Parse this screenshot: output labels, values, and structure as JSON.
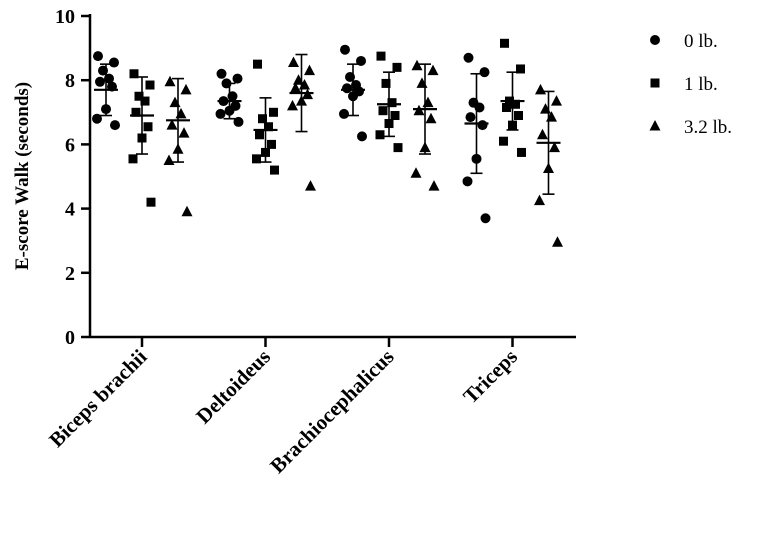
{
  "chart_data": {
    "type": "scatter",
    "title": "",
    "xlabel": "",
    "ylabel": "E-score Walk (seconds)",
    "ylim": [
      0,
      10
    ],
    "yticks": [
      0,
      2,
      4,
      6,
      8,
      10
    ],
    "categories": [
      "Biceps brachii",
      "Deltoideus",
      "Brachiocephalicus",
      "Triceps"
    ],
    "legend_position": "top-right",
    "grid": false,
    "series": [
      {
        "name": "0 lb.",
        "marker": "circle",
        "points": [
          [
            8.75,
            8.55,
            8.3,
            8.05,
            7.95,
            7.8,
            7.1,
            6.8,
            6.6
          ],
          [
            8.2,
            8.05,
            7.9,
            7.5,
            7.35,
            7.2,
            7.05,
            6.95,
            6.7
          ],
          [
            8.95,
            8.6,
            8.1,
            7.85,
            7.75,
            7.65,
            7.5,
            6.95,
            6.25
          ],
          [
            8.7,
            8.25,
            7.3,
            7.15,
            6.85,
            6.6,
            5.55,
            4.85,
            3.7
          ]
        ],
        "mean": [
          7.7,
          7.35,
          7.7,
          6.65
        ],
        "sd": [
          0.8,
          0.55,
          0.8,
          1.55
        ]
      },
      {
        "name": "1 lb.",
        "marker": "square",
        "points": [
          [
            8.2,
            7.85,
            7.5,
            7.35,
            7.0,
            6.55,
            6.2,
            5.55,
            4.2
          ],
          [
            8.5,
            7.0,
            6.8,
            6.55,
            6.3,
            6.0,
            5.75,
            5.55,
            5.2
          ],
          [
            8.75,
            8.4,
            7.9,
            7.3,
            7.05,
            6.9,
            6.65,
            6.3,
            5.9
          ],
          [
            9.15,
            8.35,
            7.35,
            7.25,
            7.15,
            6.9,
            6.6,
            6.1,
            5.75
          ]
        ],
        "mean": [
          6.9,
          6.45,
          7.25,
          7.35
        ],
        "sd": [
          1.2,
          1.0,
          1.0,
          0.9
        ]
      },
      {
        "name": "3.2 lb.",
        "marker": "triangle",
        "points": [
          [
            7.95,
            7.7,
            7.3,
            6.95,
            6.6,
            6.35,
            5.85,
            5.5,
            3.9
          ],
          [
            8.55,
            8.3,
            8.0,
            7.85,
            7.75,
            7.55,
            7.35,
            7.2,
            4.7
          ],
          [
            8.45,
            8.3,
            7.9,
            7.3,
            7.05,
            6.8,
            5.9,
            5.1,
            4.7
          ],
          [
            7.7,
            7.35,
            7.1,
            6.85,
            6.3,
            5.9,
            5.25,
            4.25,
            2.95
          ]
        ],
        "mean": [
          6.75,
          7.6,
          7.1,
          6.05
        ],
        "sd": [
          1.3,
          1.2,
          1.4,
          1.6
        ]
      }
    ]
  }
}
